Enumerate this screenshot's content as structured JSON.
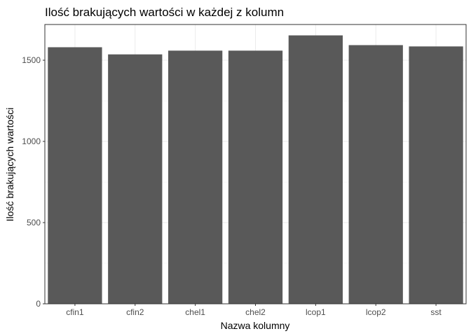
{
  "chart_data": {
    "type": "bar",
    "title": "Ilość brakujących wartości w każdej z kolumn",
    "xlabel": "Nazwa kolumny",
    "ylabel": "Ilość brakujących wartości",
    "categories": [
      "cfin1",
      "cfin2",
      "chel1",
      "chel2",
      "lcop1",
      "lcop2",
      "sst"
    ],
    "values": [
      1580,
      1536,
      1559,
      1559,
      1653,
      1593,
      1585
    ],
    "ylim": [
      0,
      1720
    ],
    "yticks": [
      0,
      500,
      1000,
      1500
    ],
    "ytick_labels": [
      "0",
      "500",
      "1000",
      "1500"
    ],
    "bar_color": "#595959",
    "grid": true
  }
}
